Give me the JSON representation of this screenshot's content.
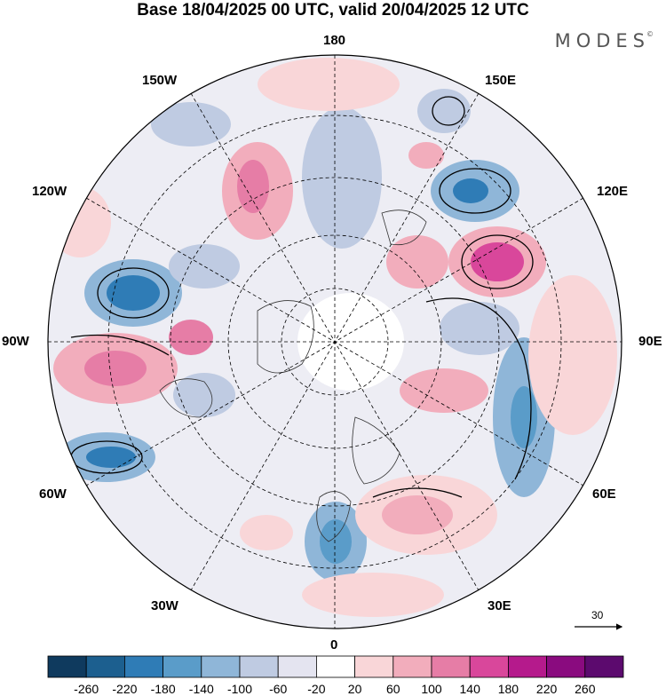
{
  "title": "Base 18/04/2025 00 UTC, valid 20/04/2025 12 UTC",
  "brand": "MODES",
  "brand_mark": "©",
  "longitude_labels": {
    "top": "180",
    "bottom": "0",
    "left": "90W",
    "right": "90E",
    "upper_left_1": "150W",
    "upper_left_2": "120W",
    "lower_left_1": "60W",
    "lower_left_2": "30W",
    "upper_right_1": "150E",
    "upper_right_2": "120E",
    "lower_right_1": "60E",
    "lower_right_2": "30E"
  },
  "reference_vector": {
    "value": "30",
    "icon": "arrow-right-icon"
  },
  "colorbar": {
    "ticks": [
      "-260",
      "-220",
      "-180",
      "-140",
      "-100",
      "-60",
      "-20",
      "20",
      "60",
      "100",
      "140",
      "180",
      "220",
      "260"
    ],
    "colors": [
      "#0f3a5e",
      "#1c5f8f",
      "#2f7cb6",
      "#5a9cc9",
      "#8fb6d8",
      "#bfcbe2",
      "#e4e4f0",
      "#ffffff",
      "#f9d6d8",
      "#f2adbc",
      "#e67da6",
      "#d9479b",
      "#b51a8c",
      "#8a0b7f",
      "#5c0a6e"
    ]
  }
}
